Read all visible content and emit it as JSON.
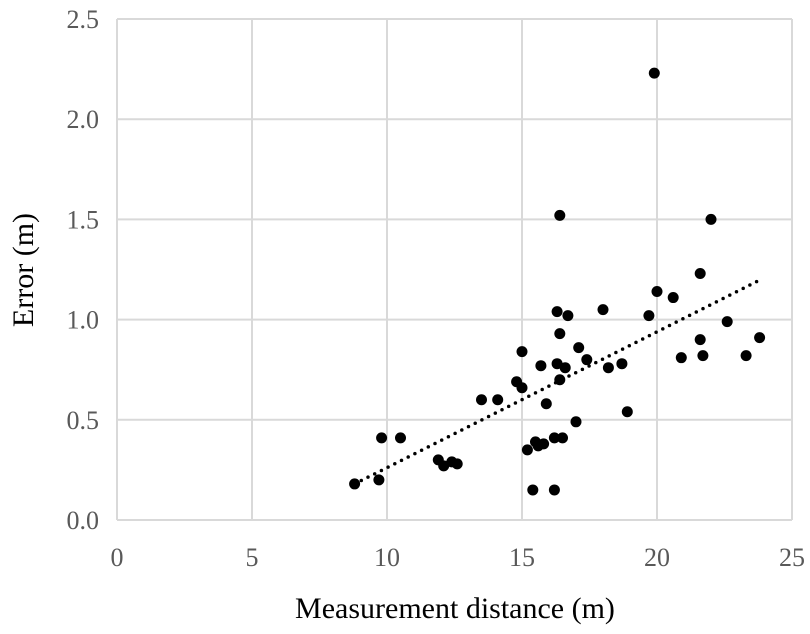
{
  "chart_data": {
    "type": "scatter",
    "xlabel": "Measurement distance (m)",
    "ylabel": "Error (m)",
    "xlim": [
      0,
      25
    ],
    "ylim": [
      0,
      2.5
    ],
    "xticks": [
      0,
      5,
      10,
      15,
      20,
      25
    ],
    "yticks": [
      0.0,
      0.5,
      1.0,
      1.5,
      2.0,
      2.5
    ],
    "xtick_labels": [
      "0",
      "5",
      "10",
      "15",
      "20",
      "25"
    ],
    "ytick_labels": [
      "0.0",
      "0.5",
      "1.0",
      "1.5",
      "2.0",
      "2.5"
    ],
    "grid": true,
    "colors": {
      "points": "#000000",
      "grid": "#d9d9d9",
      "trendline": "#000000"
    },
    "trendline": {
      "style": "dotted",
      "x": [
        8.8,
        23.7
      ],
      "y": [
        0.18,
        1.19
      ]
    },
    "points": [
      [
        8.8,
        0.18
      ],
      [
        9.7,
        0.2
      ],
      [
        9.8,
        0.41
      ],
      [
        10.5,
        0.41
      ],
      [
        11.9,
        0.3
      ],
      [
        12.1,
        0.27
      ],
      [
        12.4,
        0.29
      ],
      [
        12.6,
        0.28
      ],
      [
        13.5,
        0.6
      ],
      [
        14.1,
        0.6
      ],
      [
        14.8,
        0.69
      ],
      [
        15.0,
        0.66
      ],
      [
        15.0,
        0.84
      ],
      [
        15.2,
        0.35
      ],
      [
        15.4,
        0.15
      ],
      [
        15.5,
        0.39
      ],
      [
        15.6,
        0.37
      ],
      [
        15.7,
        0.77
      ],
      [
        15.8,
        0.38
      ],
      [
        15.9,
        0.58
      ],
      [
        16.2,
        0.15
      ],
      [
        16.2,
        0.41
      ],
      [
        16.3,
        1.04
      ],
      [
        16.3,
        0.78
      ],
      [
        16.4,
        0.93
      ],
      [
        16.4,
        1.52
      ],
      [
        16.4,
        0.7
      ],
      [
        16.5,
        0.41
      ],
      [
        16.6,
        0.76
      ],
      [
        16.7,
        1.02
      ],
      [
        17.0,
        0.49
      ],
      [
        17.1,
        0.86
      ],
      [
        17.4,
        0.8
      ],
      [
        18.0,
        1.05
      ],
      [
        18.2,
        0.76
      ],
      [
        18.7,
        0.78
      ],
      [
        18.9,
        0.54
      ],
      [
        19.7,
        1.02
      ],
      [
        19.9,
        2.23
      ],
      [
        20.0,
        1.14
      ],
      [
        20.6,
        1.11
      ],
      [
        20.9,
        0.81
      ],
      [
        21.6,
        1.23
      ],
      [
        21.6,
        0.9
      ],
      [
        21.7,
        0.82
      ],
      [
        22.0,
        1.5
      ],
      [
        22.6,
        0.99
      ],
      [
        23.3,
        0.82
      ],
      [
        23.8,
        0.91
      ]
    ]
  }
}
